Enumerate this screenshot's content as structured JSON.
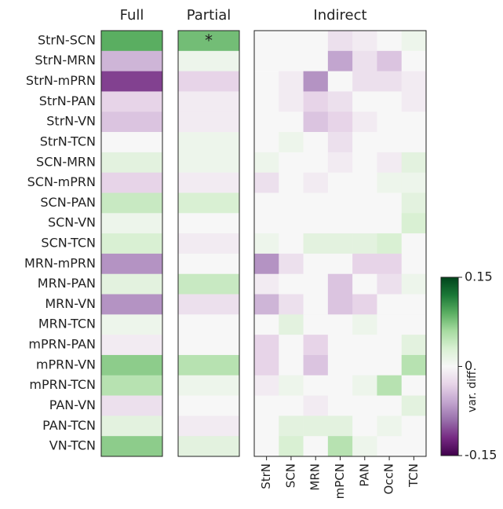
{
  "chart_data": {
    "type": "heatmap",
    "rows": [
      "StrN-SCN",
      "StrN-MRN",
      "StrN-mPRN",
      "StrN-PAN",
      "StrN-VN",
      "StrN-TCN",
      "SCN-MRN",
      "SCN-mPRN",
      "SCN-PAN",
      "SCN-VN",
      "SCN-TCN",
      "MRN-mPRN",
      "MRN-PAN",
      "MRN-VN",
      "MRN-TCN",
      "mPRN-PAN",
      "mPRN-VN",
      "mPRN-TCN",
      "PAN-VN",
      "PAN-TCN",
      "VN-TCN"
    ],
    "panels": [
      {
        "title": "Full",
        "values": [
          0.09,
          -0.05,
          -0.11,
          -0.03,
          -0.04,
          0,
          0.02,
          -0.03,
          0.04,
          0.01,
          0.03,
          -0.07,
          0.02,
          -0.07,
          0.01,
          -0.01,
          0.07,
          0.05,
          -0.02,
          0.02,
          0.07
        ]
      },
      {
        "title": "Partial",
        "values": [
          0.08,
          0.01,
          -0.03,
          -0.01,
          -0.01,
          0.01,
          0.01,
          -0.01,
          0.03,
          0,
          -0.01,
          0,
          0.04,
          -0.02,
          0,
          0,
          0.05,
          0.01,
          0,
          -0.01,
          0.02
        ],
        "significance": [
          "*",
          null,
          null,
          null,
          null,
          null,
          null,
          null,
          null,
          null,
          null,
          null,
          null,
          null,
          null,
          null,
          null,
          null,
          null,
          null,
          null
        ]
      },
      {
        "title": "Indirect",
        "columns": [
          "StrN",
          "SCN",
          "MRN",
          "mPCN",
          "PAN",
          "OccN",
          "TCN"
        ],
        "values": [
          [
            0,
            0,
            0,
            -0.02,
            -0.01,
            0,
            0.01
          ],
          [
            0,
            0,
            0,
            -0.06,
            -0.02,
            -0.04,
            0
          ],
          [
            0,
            -0.01,
            -0.07,
            0,
            -0.02,
            -0.02,
            -0.01
          ],
          [
            0,
            -0.01,
            -0.03,
            -0.02,
            0,
            0,
            -0.01
          ],
          [
            0,
            0,
            -0.04,
            -0.03,
            -0.01,
            0,
            0
          ],
          [
            0,
            0.01,
            0,
            -0.02,
            0,
            0,
            0
          ],
          [
            0.01,
            0,
            0,
            -0.01,
            0,
            -0.01,
            0.02
          ],
          [
            -0.02,
            0,
            -0.01,
            0,
            0,
            0.01,
            0.01
          ],
          [
            0,
            0,
            0,
            0,
            0,
            0,
            0.02
          ],
          [
            0,
            0,
            0,
            0,
            0,
            0,
            0.03
          ],
          [
            0.01,
            0,
            0.02,
            0.02,
            0.02,
            0.03,
            0
          ],
          [
            -0.07,
            -0.02,
            0,
            0,
            -0.03,
            -0.03,
            0
          ],
          [
            -0.01,
            0,
            0,
            -0.04,
            0,
            -0.02,
            0.01
          ],
          [
            -0.05,
            -0.02,
            0,
            -0.04,
            -0.03,
            0,
            0
          ],
          [
            0,
            0.02,
            0,
            0,
            0.01,
            0,
            0
          ],
          [
            -0.03,
            0,
            -0.03,
            0,
            0,
            0,
            0.02
          ],
          [
            -0.03,
            0,
            -0.04,
            0,
            0,
            0,
            0.05
          ],
          [
            -0.01,
            0.01,
            0,
            0,
            0.01,
            0.05,
            0
          ],
          [
            0,
            0,
            -0.01,
            0,
            0,
            0,
            0.02
          ],
          [
            0,
            0.02,
            0.02,
            0.02,
            0,
            0.01,
            0
          ],
          [
            0,
            0.03,
            0,
            0.05,
            0.01,
            0,
            0
          ]
        ]
      }
    ],
    "colorbar": {
      "label": "var. diff.",
      "zlim": [
        -0.15,
        0.15
      ],
      "zticks": [
        0.15,
        0,
        -0.15
      ],
      "colormap": [
        "#40004b",
        "#762a83",
        "#9970ab",
        "#c2a5cf",
        "#e7d4e8",
        "#f7f7f7",
        "#d9f0d3",
        "#a6dba0",
        "#5aae61",
        "#1b7837",
        "#00441b"
      ]
    }
  }
}
